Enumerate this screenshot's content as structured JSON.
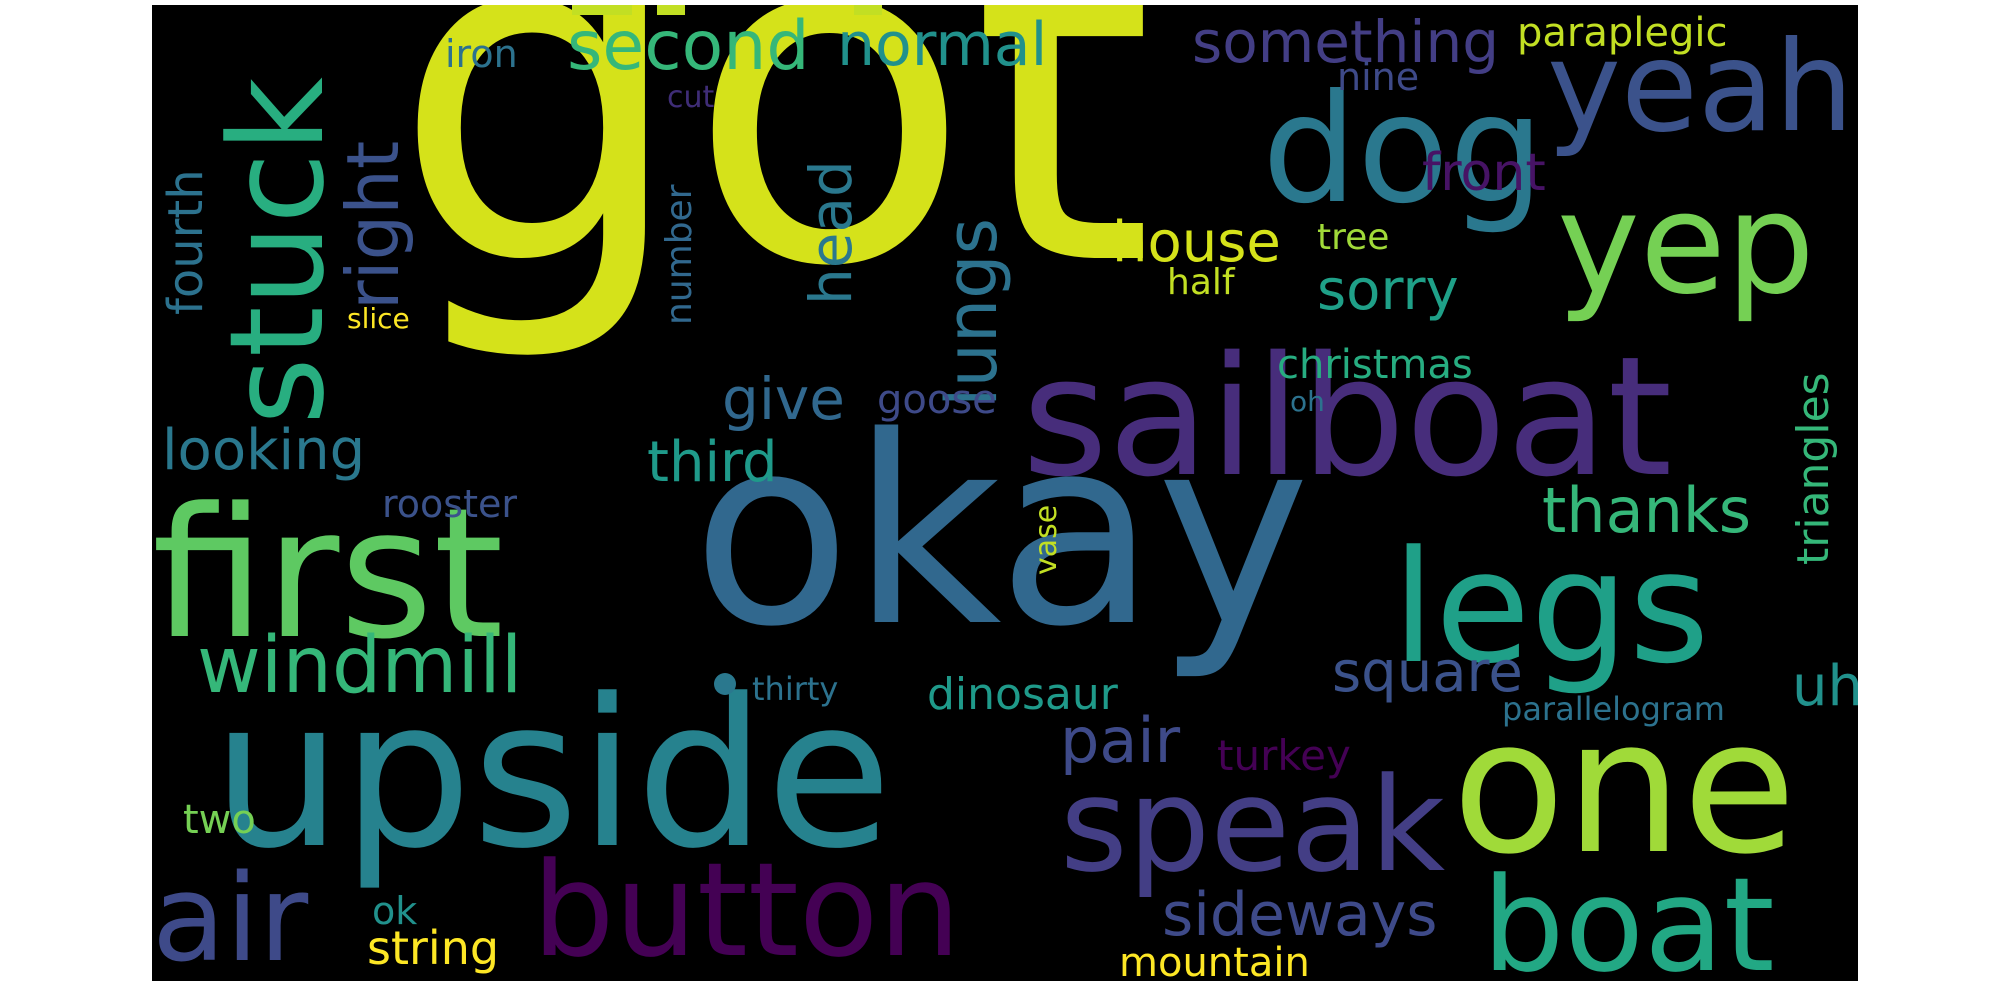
{
  "words": [
    {
      "text": "got",
      "color": "#d5e21a",
      "rotated": false
    },
    {
      "text": "okay",
      "color": "#31688e",
      "rotated": false
    },
    {
      "text": "upside",
      "color": "#26828e",
      "rotated": false
    },
    {
      "text": "sailboat",
      "color": "#472d7b",
      "rotated": false
    },
    {
      "text": "first",
      "color": "#5ec962",
      "rotated": false
    },
    {
      "text": "one",
      "color": "#a0da39",
      "rotated": false
    },
    {
      "text": "legs",
      "color": "#1fa088",
      "rotated": false
    },
    {
      "text": "dog",
      "color": "#2a788e",
      "rotated": false
    },
    {
      "text": "yeah",
      "color": "#3b528b",
      "rotated": false
    },
    {
      "text": "yep",
      "color": "#75d054",
      "rotated": false
    },
    {
      "text": "button",
      "color": "#440154",
      "rotated": false
    },
    {
      "text": "speak",
      "color": "#433e85",
      "rotated": false
    },
    {
      "text": "boat",
      "color": "#22a884",
      "rotated": false
    },
    {
      "text": "air",
      "color": "#3e4a89",
      "rotated": false
    },
    {
      "text": "stuck",
      "color": "#28ae80",
      "rotated": true
    },
    {
      "text": "right",
      "color": "#3b528b",
      "rotated": true
    },
    {
      "text": "windmill",
      "color": "#35b779",
      "rotated": false
    },
    {
      "text": "lungs",
      "color": "#2c728e",
      "rotated": true
    },
    {
      "text": "head",
      "color": "#2a788e",
      "rotated": true
    },
    {
      "text": "second",
      "color": "#35b779",
      "rotated": false
    },
    {
      "text": "normal",
      "color": "#21918c",
      "rotated": false
    },
    {
      "text": "something",
      "color": "#433e85",
      "rotated": false
    },
    {
      "text": "paraplegic",
      "color": "#c2df23",
      "rotated": false
    },
    {
      "text": "iron",
      "color": "#2c728e",
      "rotated": false
    },
    {
      "text": "nine",
      "color": "#3e4a89",
      "rotated": false
    },
    {
      "text": "cut",
      "color": "#3f2d77",
      "rotated": false
    },
    {
      "text": "front",
      "color": "#471365",
      "rotated": false
    },
    {
      "text": "house",
      "color": "#d5e21a",
      "rotated": false
    },
    {
      "text": "tree",
      "color": "#a0da39",
      "rotated": false
    },
    {
      "text": "sorry",
      "color": "#1fa088",
      "rotated": false
    },
    {
      "text": "half",
      "color": "#c2df23",
      "rotated": false
    },
    {
      "text": "fourth",
      "color": "#2c728e",
      "rotated": true
    },
    {
      "text": "slice",
      "color": "#fde725",
      "rotated": false
    },
    {
      "text": "number",
      "color": "#31688e",
      "rotated": true
    },
    {
      "text": "christmas",
      "color": "#27ad81",
      "rotated": false
    },
    {
      "text": "triangles",
      "color": "#35b779",
      "rotated": true
    },
    {
      "text": "give",
      "color": "#31688e",
      "rotated": false
    },
    {
      "text": "goose",
      "color": "#3e4a89",
      "rotated": false
    },
    {
      "text": "oh",
      "color": "#2c728e",
      "rotated": false
    },
    {
      "text": "looking",
      "color": "#2a788e",
      "rotated": false
    },
    {
      "text": "third",
      "color": "#1f9a8a",
      "rotated": false
    },
    {
      "text": "rooster",
      "color": "#3b528b",
      "rotated": false
    },
    {
      "text": "thanks",
      "color": "#35b779",
      "rotated": false
    },
    {
      "text": "vase",
      "color": "#c2df23",
      "rotated": true
    },
    {
      "text": "square",
      "color": "#3b528b",
      "rotated": false
    },
    {
      "text": "uh",
      "color": "#21918c",
      "rotated": false
    },
    {
      "text": "thirty",
      "color": "#2c728e",
      "rotated": false
    },
    {
      "text": "dinosaur",
      "color": "#1f9a8a",
      "rotated": false
    },
    {
      "text": "parallelogram",
      "color": "#2c728e",
      "rotated": false
    },
    {
      "text": "pair",
      "color": "#3e4a89",
      "rotated": false
    },
    {
      "text": "turkey",
      "color": "#440154",
      "rotated": false
    },
    {
      "text": "two",
      "color": "#75d054",
      "rotated": false
    },
    {
      "text": "sideways",
      "color": "#3e4a89",
      "rotated": false
    },
    {
      "text": "ok",
      "color": "#21918c",
      "rotated": false
    },
    {
      "text": "string",
      "color": "#fde725",
      "rotated": false
    },
    {
      "text": "mountain",
      "color": "#fde725",
      "rotated": false
    }
  ]
}
